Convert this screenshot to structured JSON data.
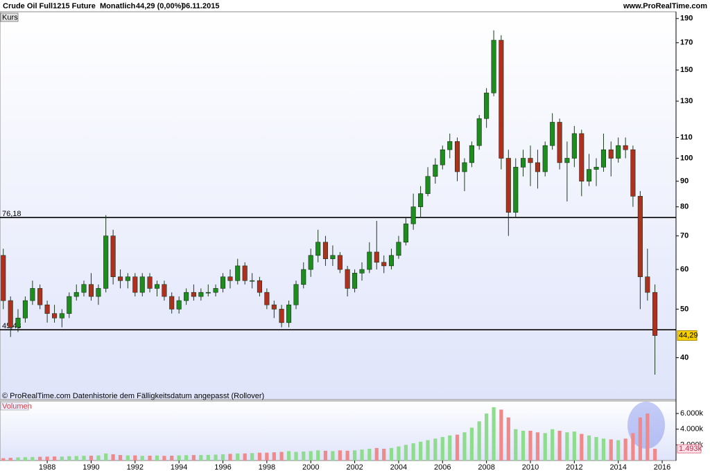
{
  "header": {
    "instrument": "Crude Oil Full1215 Future",
    "period": "Monatlich",
    "quote": "44,29 (0,00%)",
    "date": "06.11.2015",
    "site": "www.ProRealTime.com"
  },
  "chart_data": [
    {
      "type": "candlestick",
      "label": "Kurs",
      "footnote": "© ProRealTime.com  Datenhistorie dem Fälligkeitsdatum angepasst (Rollover)",
      "log_scale": true,
      "up_color": "#1e8c1e",
      "down_color": "#b03020",
      "x": [
        1986.0,
        1986.33,
        1986.67,
        1987.0,
        1987.33,
        1987.67,
        1988.0,
        1988.33,
        1988.67,
        1989.0,
        1989.33,
        1989.67,
        1990.0,
        1990.33,
        1990.67,
        1991.0,
        1991.33,
        1991.67,
        1992.0,
        1992.33,
        1992.67,
        1993.0,
        1993.33,
        1993.67,
        1994.0,
        1994.33,
        1994.67,
        1995.0,
        1995.33,
        1995.67,
        1996.0,
        1996.33,
        1996.67,
        1997.0,
        1997.33,
        1997.67,
        1998.0,
        1998.33,
        1998.67,
        1999.0,
        1999.33,
        1999.67,
        2000.0,
        2000.33,
        2000.67,
        2001.0,
        2001.33,
        2001.67,
        2002.0,
        2002.33,
        2002.67,
        2003.0,
        2003.33,
        2003.67,
        2004.0,
        2004.33,
        2004.67,
        2005.0,
        2005.33,
        2005.67,
        2006.0,
        2006.33,
        2006.67,
        2007.0,
        2007.33,
        2007.67,
        2008.0,
        2008.33,
        2008.67,
        2009.0,
        2009.33,
        2009.67,
        2010.0,
        2010.33,
        2010.67,
        2011.0,
        2011.33,
        2011.67,
        2012.0,
        2012.33,
        2012.67,
        2013.0,
        2013.33,
        2013.67,
        2014.0,
        2014.33,
        2014.67,
        2015.0,
        2015.33,
        2015.67
      ],
      "open": [
        64,
        52,
        46,
        48,
        52,
        55,
        51,
        49,
        48,
        49,
        53,
        54,
        56,
        53,
        55,
        70,
        58,
        57,
        58,
        54,
        58,
        55,
        56,
        53,
        50,
        52,
        54,
        53,
        54,
        54,
        55,
        58,
        57,
        61,
        57,
        57,
        54,
        51,
        50,
        47,
        51,
        56,
        60,
        64,
        68,
        63,
        64,
        60,
        55,
        59,
        60,
        65,
        62,
        61,
        64,
        68,
        74,
        80,
        85,
        92,
        97,
        104,
        108,
        94,
        98,
        106,
        120,
        135,
        172,
        100,
        78,
        96,
        100,
        98,
        94,
        106,
        118,
        98,
        100,
        112,
        90,
        95,
        96,
        104,
        100,
        106,
        104,
        84,
        58,
        54
      ],
      "high": [
        66,
        53,
        50,
        53,
        57,
        56,
        52,
        51,
        50,
        54,
        56,
        57,
        59,
        56,
        77,
        72,
        60,
        59,
        59,
        59,
        59,
        57,
        57,
        54,
        53,
        55,
        56,
        55,
        56,
        56,
        59,
        60,
        63,
        62,
        59,
        58,
        55,
        52,
        51,
        52,
        57,
        62,
        66,
        72,
        70,
        67,
        65,
        61,
        60,
        62,
        68,
        75,
        64,
        66,
        70,
        76,
        85,
        88,
        96,
        100,
        106,
        112,
        110,
        100,
        108,
        122,
        138,
        180,
        176,
        104,
        100,
        104,
        106,
        104,
        108,
        123,
        120,
        108,
        116,
        114,
        102,
        100,
        112,
        108,
        110,
        110,
        106,
        86,
        66,
        56
      ],
      "low": [
        50,
        44,
        45,
        47,
        51,
        50,
        47,
        47,
        46,
        48,
        52,
        53,
        52,
        51,
        54,
        56,
        55,
        55,
        53,
        53,
        54,
        53,
        52,
        49,
        49,
        51,
        52,
        52,
        53,
        53,
        54,
        55,
        56,
        56,
        55,
        53,
        50,
        48,
        46,
        46,
        50,
        55,
        58,
        62,
        61,
        61,
        59,
        53,
        54,
        57,
        59,
        60,
        59,
        60,
        63,
        67,
        72,
        76,
        84,
        89,
        95,
        100,
        90,
        86,
        96,
        104,
        115,
        133,
        95,
        70,
        76,
        92,
        88,
        87,
        92,
        104,
        95,
        82,
        96,
        84,
        88,
        88,
        94,
        92,
        98,
        100,
        80,
        50,
        52,
        37
      ],
      "close": [
        52,
        46,
        48,
        52,
        55,
        51,
        49,
        48,
        49,
        53,
        54,
        56,
        53,
        55,
        70,
        58,
        57,
        58,
        54,
        58,
        55,
        56,
        53,
        50,
        52,
        54,
        53,
        54,
        54,
        55,
        58,
        57,
        61,
        57,
        57,
        54,
        51,
        50,
        47,
        51,
        56,
        60,
        64,
        68,
        63,
        64,
        60,
        55,
        59,
        60,
        65,
        62,
        61,
        64,
        68,
        74,
        80,
        85,
        92,
        97,
        104,
        108,
        94,
        98,
        106,
        120,
        135,
        172,
        100,
        78,
        96,
        100,
        98,
        94,
        106,
        118,
        98,
        100,
        112,
        90,
        95,
        96,
        104,
        100,
        106,
        104,
        84,
        58,
        54,
        44.29
      ],
      "xlim": [
        1985.85,
        2016.63
      ],
      "xticks": [
        1988,
        1990,
        1992,
        1994,
        1996,
        1998,
        2000,
        2002,
        2004,
        2006,
        2008,
        2010,
        2012,
        2014,
        2016
      ],
      "ylim": [
        33,
        196
      ],
      "yticks": [
        40,
        50,
        60,
        70,
        80,
        90,
        100,
        110,
        130,
        150,
        170,
        190
      ],
      "hlines": [
        {
          "value": 76.18,
          "label": "76,18"
        },
        {
          "value": 45.48,
          "label": "45,48"
        }
      ],
      "last_label": "44,29"
    },
    {
      "type": "volume",
      "label": "Volumen",
      "up_color": "#8fdc8f",
      "down_color": "#f08a8a",
      "values": [
        300,
        350,
        400,
        420,
        450,
        480,
        500,
        520,
        500,
        550,
        580,
        600,
        620,
        650,
        900,
        800,
        700,
        650,
        650,
        600,
        620,
        640,
        600,
        620,
        650,
        680,
        700,
        700,
        720,
        750,
        800,
        850,
        900,
        900,
        950,
        1000,
        1000,
        1050,
        1100,
        1200,
        1100,
        1150,
        1200,
        1300,
        1250,
        1200,
        1300,
        1250,
        1300,
        1400,
        1500,
        1600,
        1500,
        1600,
        1800,
        2000,
        2200,
        2400,
        2600,
        2800,
        3000,
        3200,
        3300,
        3600,
        4200,
        5000,
        6000,
        6800,
        6500,
        5500,
        4000,
        3800,
        3800,
        3600,
        3500,
        4000,
        3800,
        3600,
        3700,
        3400,
        3200,
        3000,
        2800,
        2700,
        2600,
        2800,
        3500,
        5500,
        6000,
        1493
      ],
      "ylim": [
        0,
        7600
      ],
      "yticks": [
        {
          "value": 2000,
          "label": "2.000k"
        },
        {
          "value": 4000,
          "label": "4.000k"
        },
        {
          "value": 6000,
          "label": "6.000k"
        }
      ],
      "last_label": "1.493k"
    }
  ]
}
